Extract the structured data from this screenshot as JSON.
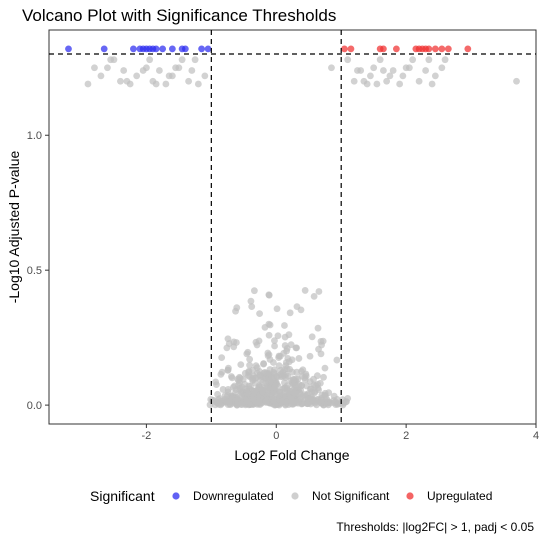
{
  "chart_data": {
    "type": "scatter",
    "title": "Volcano Plot with Significance Thresholds",
    "xlabel": "Log2 Fold Change",
    "ylabel": "-Log10 Adjusted P-value",
    "xlim": [
      -3.5,
      4.0
    ],
    "ylim": [
      -0.07,
      1.39
    ],
    "x_ticks": [
      -2,
      0,
      2,
      4
    ],
    "y_ticks": [
      0.0,
      0.5,
      1.0
    ],
    "x_tick_labels": [
      "-2",
      "0",
      "2",
      "4"
    ],
    "y_tick_labels": [
      "0.0",
      "0.5",
      "1.0"
    ],
    "grid": false,
    "thresholds": {
      "log2fc": [
        -1,
        1
      ],
      "neg_log10_padj": 1.301
    },
    "caption": "Thresholds: |log2FC| > 1, padj < 0.05",
    "legend": {
      "title": "Significant",
      "position": "bottom"
    },
    "series": [
      {
        "name": "Downregulated",
        "color": "#2c2cf0",
        "points": [
          [
            -3.2,
            1.32
          ],
          [
            -2.65,
            1.32
          ],
          [
            -2.2,
            1.32
          ],
          [
            -2.1,
            1.32
          ],
          [
            -2.0,
            1.32
          ],
          [
            -1.95,
            1.32
          ],
          [
            -1.85,
            1.32
          ],
          [
            -1.75,
            1.32
          ],
          [
            -1.6,
            1.32
          ],
          [
            -1.45,
            1.32
          ],
          [
            -1.4,
            1.32
          ],
          [
            -1.15,
            1.32
          ],
          [
            -1.05,
            1.32
          ],
          [
            -1.9,
            1.32
          ],
          [
            -2.05,
            1.32
          ]
        ]
      },
      {
        "name": "Not Significant",
        "color": "#bfbfbf",
        "points": []
      },
      {
        "name": "Upregulated",
        "color": "#f03030",
        "points": [
          [
            1.05,
            1.32
          ],
          [
            1.15,
            1.32
          ],
          [
            1.6,
            1.32
          ],
          [
            1.65,
            1.32
          ],
          [
            1.85,
            1.32
          ],
          [
            2.15,
            1.32
          ],
          [
            2.2,
            1.32
          ],
          [
            2.3,
            1.32
          ],
          [
            2.35,
            1.32
          ],
          [
            2.45,
            1.32
          ],
          [
            2.55,
            1.32
          ],
          [
            2.65,
            1.32
          ],
          [
            2.95,
            1.32
          ],
          [
            2.25,
            1.32
          ]
        ]
      }
    ]
  }
}
